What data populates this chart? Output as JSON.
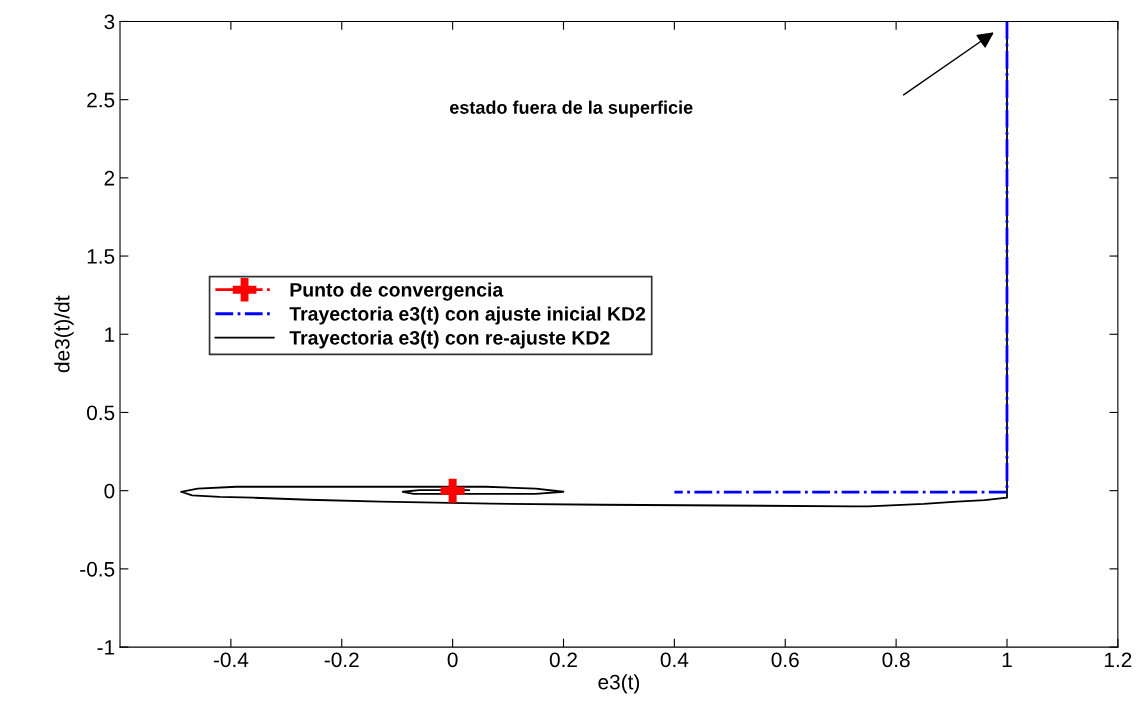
{
  "chart_data": {
    "type": "line",
    "xlabel": "e3(t)",
    "ylabel": "de3(t)/dt",
    "xlim": [
      -0.6,
      1.2
    ],
    "xticks": [
      -0.4,
      -0.2,
      0,
      0.2,
      0.4,
      0.6,
      0.8,
      1,
      1.2
    ],
    "ylim": [
      -1,
      3
    ],
    "yticks": [
      -1,
      -0.5,
      0,
      0.5,
      1,
      1.5,
      2,
      2.5,
      3
    ],
    "grid": false,
    "legend": "center left",
    "annotations": [
      "estado fuera de la superficie"
    ],
    "series": [
      {
        "name": "Punto de convergencia",
        "type": "scatter",
        "marker": "cross",
        "color": "#ff0000",
        "x": [
          0
        ],
        "values": [
          0
        ]
      },
      {
        "name": "Trayectoria e3(t) con ajuste inicial KD2",
        "line_style": "dashdot",
        "color": "#0000ff",
        "x": [
          1,
          1,
          0.4
        ],
        "values": [
          3,
          -0.01,
          -0.01
        ]
      },
      {
        "name": "Trayectoria e3(t) con re-ajuste KD2",
        "line_style": "solid",
        "color": "#000000",
        "x": [
          1,
          1,
          0.96,
          0.91,
          0.85,
          0.75,
          0.72,
          0.27,
          0.07,
          -0.13,
          -0.26,
          -0.36,
          -0.42,
          -0.47,
          -0.49,
          -0.46,
          -0.39,
          0.06,
          0.15,
          0.2,
          0.15,
          -0.07,
          -0.09,
          -0.06,
          0.03,
          0
        ],
        "values": [
          3,
          -0.045,
          -0.06,
          -0.07,
          -0.085,
          -0.1,
          -0.1,
          -0.09,
          -0.083,
          -0.07,
          -0.058,
          -0.045,
          -0.04,
          -0.03,
          -0.007,
          0.013,
          0.025,
          0.025,
          0.013,
          -0.007,
          -0.02,
          -0.02,
          -0.007,
          0.003,
          0.003,
          0
        ]
      }
    ]
  }
}
